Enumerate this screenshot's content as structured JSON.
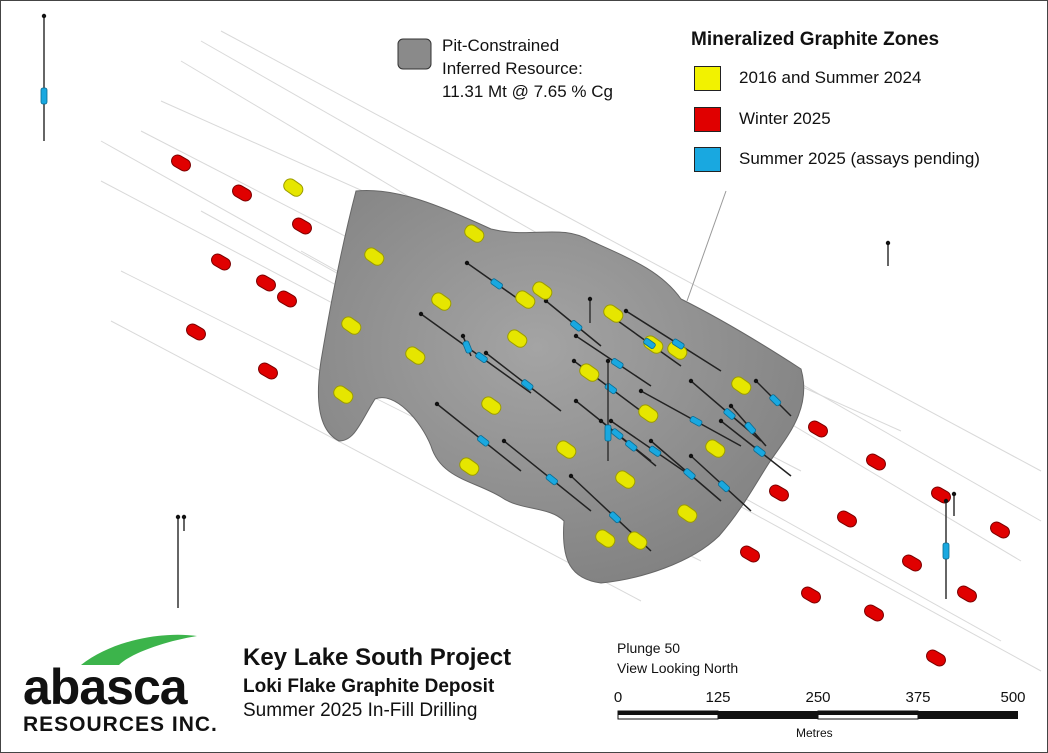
{
  "resource_label": {
    "line1": "Pit-Constrained",
    "line2": "Inferred Resource:",
    "line3": "11.31 Mt @ 7.65 % Cg"
  },
  "legend": {
    "title": "Mineralized Graphite Zones",
    "items": [
      {
        "label": "2016 and Summer 2024",
        "color": "#f2f200"
      },
      {
        "label": "Winter 2025",
        "color": "#e00000"
      },
      {
        "label": "Summer 2025 (assays pending)",
        "color": "#19a8e0"
      }
    ]
  },
  "title_block": {
    "project": "Key Lake South Project",
    "deposit": "Loki Flake Graphite Deposit",
    "drilling": "Summer 2025 In-Fill Drilling"
  },
  "view": {
    "plunge": "Plunge 50",
    "direction": "View Looking North"
  },
  "scale_bar": {
    "ticks": [
      "0",
      "125",
      "250",
      "375",
      "500"
    ],
    "unit": "Metres"
  },
  "logo": {
    "name": "abasca",
    "subtitle": "RESOURCES INC.",
    "accent": "#3cb44b"
  },
  "colors": {
    "pit_shell": "#8c8c8c",
    "yellow_zone": "#e6e600",
    "red_zone": "#e00000",
    "blue_zone": "#19a8e0"
  }
}
